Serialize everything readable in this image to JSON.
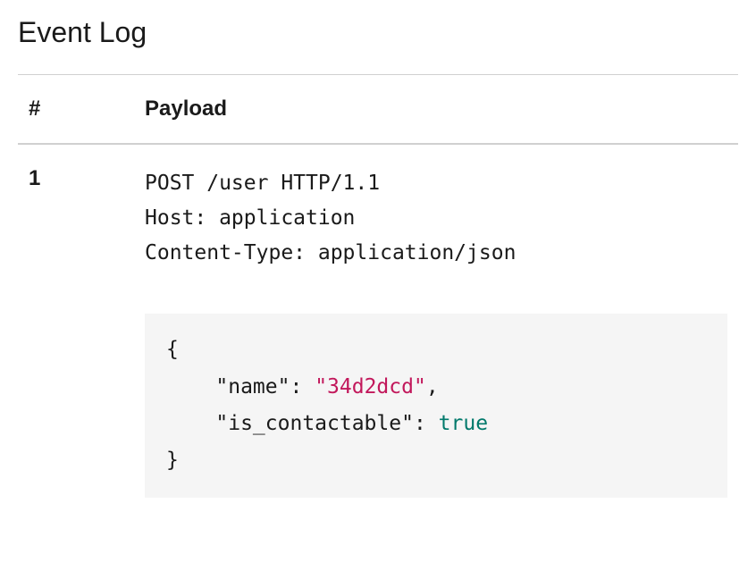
{
  "title": "Event Log",
  "columns": {
    "num": "#",
    "payload": "Payload"
  },
  "row": {
    "index": "1",
    "headers_text": "POST /user HTTP/1.1\nHost: application\nContent-Type: application/json",
    "json": {
      "open": "{",
      "close": "}",
      "indent": "    ",
      "entries": [
        {
          "key": "\"name\"",
          "colon": ":",
          "value": "\"34d2dcd\"",
          "value_type": "string",
          "comma": ","
        },
        {
          "key": "\"is_contactable\"",
          "colon": ":",
          "value": "true",
          "value_type": "bool",
          "comma": ""
        }
      ]
    }
  },
  "colors": {
    "background": "#ffffff",
    "text": "#1a1a1a",
    "border": "#d0d0d0",
    "code_bg": "#f5f5f5",
    "string": "#c2185b",
    "bool": "#00796b"
  }
}
